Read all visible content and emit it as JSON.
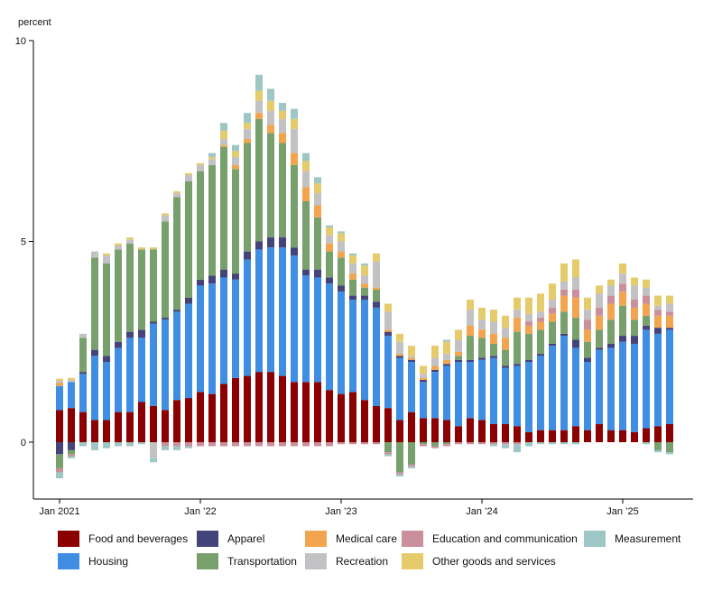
{
  "chart_data": {
    "type": "bar",
    "stacked": true,
    "ylabel": "percent",
    "ylim": [
      -1.5,
      10
    ],
    "yticks": [
      0,
      5,
      10
    ],
    "xtick_labels": [
      {
        "label": "Jan 2021",
        "index": 0
      },
      {
        "label": "Jan ’22",
        "index": 12
      },
      {
        "label": "Jan ’23",
        "index": 24
      },
      {
        "label": "Jan ’24",
        "index": 36
      },
      {
        "label": "Jan ’25",
        "index": 48
      }
    ],
    "months": [
      "Jan 2021",
      "Feb 2021",
      "Mar 2021",
      "Apr 2021",
      "May 2021",
      "Jun 2021",
      "Jul 2021",
      "Aug 2021",
      "Sep 2021",
      "Oct 2021",
      "Nov 2021",
      "Dec 2021",
      "Jan 2022",
      "Feb 2022",
      "Mar 2022",
      "Apr 2022",
      "May 2022",
      "Jun 2022",
      "Jul 2022",
      "Aug 2022",
      "Sep 2022",
      "Oct 2022",
      "Nov 2022",
      "Dec 2022",
      "Jan 2023",
      "Feb 2023",
      "Mar 2023",
      "Apr 2023",
      "May 2023",
      "Jun 2023",
      "Jul 2023",
      "Aug 2023",
      "Sep 2023",
      "Oct 2023",
      "Nov 2023",
      "Dec 2023",
      "Jan 2024",
      "Feb 2024",
      "Mar 2024",
      "Apr 2024",
      "May 2024",
      "Jun 2024",
      "Jul 2024",
      "Aug 2024",
      "Sep 2024",
      "Oct 2024",
      "Nov 2024",
      "Dec 2024",
      "Jan 2025",
      "Feb 2025",
      "Mar 2025",
      "Apr 2025",
      "May 2025"
    ],
    "series": [
      {
        "name": "Food and beverages",
        "color": "#8b0000",
        "values": [
          0.8,
          0.85,
          0.75,
          0.55,
          0.55,
          0.75,
          0.75,
          1.0,
          0.9,
          0.8,
          1.05,
          1.1,
          1.25,
          1.2,
          1.45,
          1.6,
          1.65,
          1.75,
          1.75,
          1.65,
          1.5,
          1.5,
          1.5,
          1.3,
          1.2,
          1.25,
          1.05,
          0.9,
          0.85,
          0.55,
          0.75,
          0.6,
          0.6,
          0.55,
          0.4,
          0.6,
          0.55,
          0.45,
          0.45,
          0.4,
          0.25,
          0.3,
          0.3,
          0.3,
          0.4,
          0.3,
          0.45,
          0.3,
          0.3,
          0.25,
          0.35,
          0.4,
          0.45
        ]
      },
      {
        "name": "Housing",
        "color": "#3f8ee3",
        "values": [
          0.6,
          0.65,
          0.95,
          1.6,
          1.45,
          1.6,
          1.85,
          1.6,
          2.05,
          2.25,
          2.2,
          2.35,
          2.65,
          2.75,
          2.65,
          2.45,
          2.9,
          3.05,
          3.1,
          3.2,
          3.15,
          2.65,
          2.6,
          2.65,
          2.55,
          2.3,
          2.5,
          2.45,
          1.8,
          1.55,
          1.25,
          0.9,
          1.15,
          1.35,
          1.6,
          1.4,
          1.5,
          1.65,
          1.4,
          1.5,
          1.75,
          1.85,
          2.1,
          2.35,
          1.95,
          1.7,
          1.85,
          2.05,
          2.2,
          2.2,
          2.45,
          2.3,
          2.35
        ]
      },
      {
        "name": "Apparel",
        "color": "#44447a",
        "values": [
          -0.3,
          -0.2,
          0.05,
          0.15,
          0.15,
          0.15,
          0.15,
          0.2,
          0.05,
          0.05,
          0.05,
          0.15,
          0.15,
          0.2,
          0.2,
          0.15,
          0.2,
          0.2,
          0.25,
          0.25,
          0.2,
          0.15,
          0.2,
          0.15,
          0.15,
          0.1,
          0.1,
          0.15,
          0.1,
          0.05,
          0.05,
          0.05,
          0.05,
          0.05,
          0.05,
          0.05,
          0.05,
          0.05,
          0.05,
          0.05,
          0.05,
          0.05,
          0.05,
          0.05,
          0.2,
          0.1,
          0.05,
          0.1,
          0.15,
          0.2,
          0.1,
          0.15,
          0.05
        ]
      },
      {
        "name": "Transportation",
        "color": "#78a06c",
        "values": [
          -0.35,
          -0.1,
          0.85,
          2.3,
          2.3,
          2.3,
          2.2,
          2.0,
          1.8,
          2.4,
          2.8,
          2.9,
          2.7,
          2.75,
          3.05,
          2.6,
          2.7,
          3.05,
          2.6,
          2.35,
          2.05,
          1.7,
          1.3,
          0.65,
          0.7,
          0.4,
          0.2,
          0.3,
          -0.25,
          -0.75,
          -0.55,
          -0.05,
          -0.1,
          -0.05,
          0.1,
          0.6,
          0.5,
          0.3,
          0.4,
          0.8,
          0.65,
          0.6,
          0.55,
          0.55,
          0.55,
          0.4,
          0.45,
          0.6,
          0.75,
          0.4,
          0.25,
          -0.2,
          -0.25
        ]
      },
      {
        "name": "Medical care",
        "color": "#f2a54e",
        "values": [
          0.08,
          0.0,
          0.0,
          0.0,
          0.0,
          0.0,
          0.0,
          0.0,
          0.0,
          0.0,
          0.0,
          0.0,
          0.0,
          0.0,
          0.05,
          0.1,
          0.1,
          0.15,
          0.2,
          0.25,
          0.3,
          0.35,
          0.3,
          0.2,
          0.15,
          0.15,
          0.1,
          0.05,
          0.05,
          0.05,
          0.05,
          0.05,
          0.1,
          0.1,
          0.1,
          0.25,
          0.2,
          0.25,
          0.3,
          0.35,
          0.2,
          0.2,
          0.2,
          0.4,
          0.5,
          0.3,
          0.35,
          0.4,
          0.35,
          0.3,
          0.3,
          0.3,
          0.3
        ]
      },
      {
        "name": "Education and communication",
        "color": "#c9909c",
        "values": [
          -0.1,
          -0.05,
          0.0,
          0.0,
          0.0,
          0.0,
          0.0,
          0.0,
          0.0,
          -0.1,
          -0.1,
          -0.1,
          -0.1,
          -0.1,
          -0.1,
          -0.1,
          -0.1,
          -0.1,
          -0.1,
          -0.1,
          -0.1,
          -0.1,
          -0.1,
          -0.1,
          -0.05,
          -0.05,
          -0.05,
          -0.05,
          -0.05,
          -0.05,
          -0.05,
          -0.05,
          -0.05,
          -0.05,
          -0.05,
          -0.05,
          -0.05,
          -0.05,
          -0.05,
          -0.05,
          0.1,
          0.1,
          0.15,
          0.15,
          0.2,
          0.25,
          0.2,
          0.2,
          0.2,
          0.2,
          0.2,
          0.15,
          0.1
        ]
      },
      {
        "name": "Recreation",
        "color": "#c2c2c4",
        "values": [
          0.05,
          0.05,
          0.1,
          0.15,
          0.2,
          0.1,
          0.1,
          0.0,
          -0.4,
          0.15,
          0.1,
          0.15,
          0.15,
          0.15,
          0.15,
          0.2,
          0.25,
          0.3,
          0.35,
          0.35,
          0.6,
          0.4,
          0.3,
          0.2,
          0.25,
          0.25,
          0.2,
          0.65,
          0.45,
          0.3,
          0.05,
          0.1,
          0.2,
          0.15,
          0.3,
          0.4,
          0.25,
          0.3,
          0.25,
          0.2,
          0.2,
          0.15,
          0.2,
          0.2,
          0.3,
          0.25,
          0.35,
          0.25,
          0.25,
          0.35,
          0.2,
          0.1,
          0.2
        ]
      },
      {
        "name": "Other goods and services",
        "color": "#e5cb6b",
        "values": [
          0.05,
          0.05,
          0.0,
          0.0,
          0.05,
          0.05,
          0.05,
          0.05,
          0.05,
          0.05,
          0.05,
          0.05,
          0.05,
          0.05,
          0.2,
          0.15,
          0.15,
          0.25,
          0.25,
          0.2,
          0.25,
          0.25,
          0.25,
          0.2,
          0.2,
          0.2,
          0.25,
          0.2,
          0.2,
          0.2,
          0.25,
          0.2,
          0.3,
          0.3,
          0.25,
          0.25,
          0.3,
          0.3,
          0.3,
          0.3,
          0.4,
          0.45,
          0.4,
          0.45,
          0.45,
          0.3,
          0.2,
          0.15,
          0.25,
          0.2,
          0.2,
          0.25,
          0.2
        ]
      },
      {
        "name": "Measurement",
        "color": "#9dc6c4",
        "values": [
          -0.15,
          -0.05,
          -0.1,
          -0.2,
          -0.15,
          -0.1,
          -0.1,
          -0.05,
          -0.1,
          -0.1,
          -0.1,
          -0.05,
          0.0,
          0.1,
          0.2,
          0.15,
          0.25,
          0.4,
          0.3,
          0.2,
          0.25,
          0.2,
          0.15,
          0.05,
          0.05,
          0.05,
          0.05,
          0.0,
          -0.05,
          -0.05,
          -0.05,
          0.0,
          0.0,
          0.05,
          0.0,
          0.0,
          0.0,
          -0.05,
          -0.1,
          -0.2,
          -0.1,
          -0.05,
          -0.05,
          -0.05,
          -0.05,
          0.0,
          0.0,
          0.0,
          0.0,
          0.0,
          -0.05,
          -0.05,
          -0.05
        ]
      }
    ]
  }
}
